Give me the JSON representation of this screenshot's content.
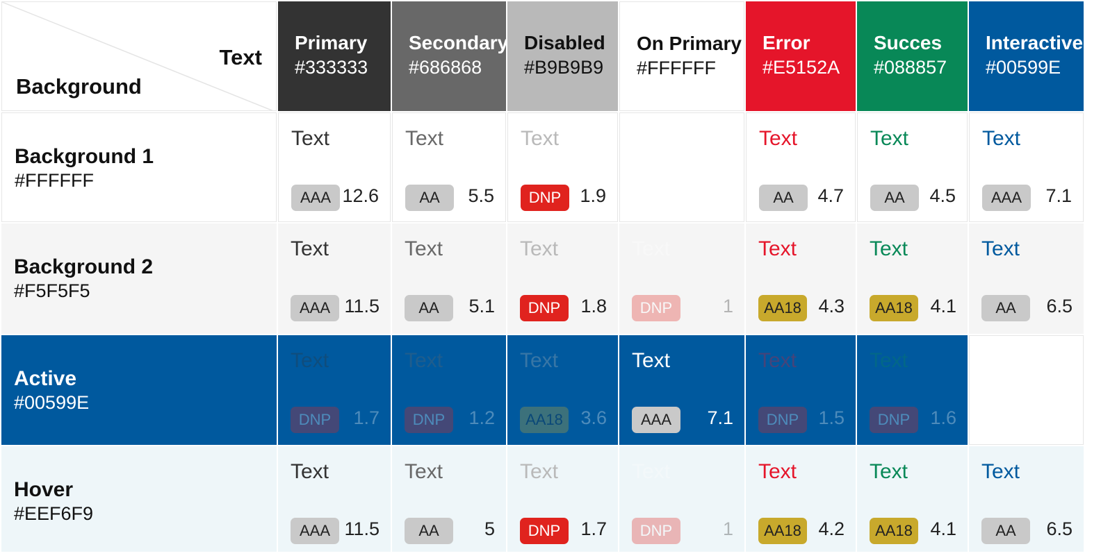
{
  "corner": {
    "text_label": "Text",
    "background_label": "Background"
  },
  "columns": [
    {
      "name": "Primary",
      "hex": "#333333",
      "color": "#333333",
      "header_text_color": "#FFFFFF"
    },
    {
      "name": "Secondary",
      "hex": "#686868",
      "color": "#686868",
      "header_text_color": "#FFFFFF"
    },
    {
      "name": "Disabled",
      "hex": "#B9B9B9",
      "color": "#B9B9B9",
      "header_text_color": "#111111"
    },
    {
      "name": "On Primary",
      "hex": "#FFFFFF",
      "color": "#FFFFFF",
      "header_text_color": "#111111"
    },
    {
      "name": "Error",
      "hex": "#E5152A",
      "color": "#E5152A",
      "header_text_color": "#FFFFFF"
    },
    {
      "name": "Succes",
      "hex": "#088857",
      "color": "#088857",
      "header_text_color": "#FFFFFF"
    },
    {
      "name": "Interactive",
      "hex": "#00599E",
      "color": "#00599E",
      "header_text_color": "#FFFFFF"
    }
  ],
  "rows": [
    {
      "name": "Background 1",
      "hex": "#FFFFFF",
      "color": "#FFFFFF",
      "header_text_color": "#111111",
      "cells": [
        {
          "sample": "Text",
          "badge": "AAA",
          "ratio": "12.6"
        },
        {
          "sample": "Text",
          "badge": "AA",
          "ratio": "5.5"
        },
        {
          "sample": "Text",
          "badge": "DNP",
          "ratio": "1.9"
        },
        {
          "empty": true
        },
        {
          "sample": "Text",
          "badge": "AA",
          "ratio": "4.7"
        },
        {
          "sample": "Text",
          "badge": "AA",
          "ratio": "4.5"
        },
        {
          "sample": "Text",
          "badge": "AAA",
          "ratio": "7.1"
        }
      ]
    },
    {
      "name": "Background 2",
      "hex": "#F5F5F5",
      "color": "#F5F5F5",
      "header_text_color": "#111111",
      "cells": [
        {
          "sample": "Text",
          "badge": "AAA",
          "ratio": "11.5"
        },
        {
          "sample": "Text",
          "badge": "AA",
          "ratio": "5.1"
        },
        {
          "sample": "Text",
          "badge": "DNP",
          "ratio": "1.8"
        },
        {
          "sample": "Text",
          "badge": "DNP",
          "ratio": "1",
          "faded": true
        },
        {
          "sample": "Text",
          "badge": "AA18",
          "ratio": "4.3"
        },
        {
          "sample": "Text",
          "badge": "AA18",
          "ratio": "4.1"
        },
        {
          "sample": "Text",
          "badge": "AA",
          "ratio": "6.5"
        }
      ]
    },
    {
      "name": "Active",
      "hex": "#00599E",
      "color": "#00599E",
      "header_text_color": "#FFFFFF",
      "cells": [
        {
          "sample": "Text",
          "badge": "DNP",
          "ratio": "1.7",
          "faded": true
        },
        {
          "sample": "Text",
          "badge": "DNP",
          "ratio": "1.2",
          "faded": true
        },
        {
          "sample": "Text",
          "badge": "AA18",
          "ratio": "3.6",
          "faded": true
        },
        {
          "sample": "Text",
          "badge": "AAA",
          "ratio": "7.1"
        },
        {
          "sample": "Text",
          "badge": "DNP",
          "ratio": "1.5",
          "faded": true
        },
        {
          "sample": "Text",
          "badge": "DNP",
          "ratio": "1.6",
          "faded": true
        },
        {
          "empty": true
        }
      ]
    },
    {
      "name": "Hover",
      "hex": "#EEF6F9",
      "color": "#EEF6F9",
      "header_text_color": "#111111",
      "cells": [
        {
          "sample": "Text",
          "badge": "AAA",
          "ratio": "11.5"
        },
        {
          "sample": "Text",
          "badge": "AA",
          "ratio": "5"
        },
        {
          "sample": "Text",
          "badge": "DNP",
          "ratio": "1.7"
        },
        {
          "sample": "Text",
          "badge": "DNP",
          "ratio": "1",
          "faded": true
        },
        {
          "sample": "Text",
          "badge": "AA18",
          "ratio": "4.2"
        },
        {
          "sample": "Text",
          "badge": "AA18",
          "ratio": "4.1"
        },
        {
          "sample": "Text",
          "badge": "AA",
          "ratio": "6.5"
        }
      ]
    }
  ],
  "badge_styles": {
    "AAA": {
      "bg": "#C9C9C9",
      "fg": "#222222"
    },
    "AA": {
      "bg": "#C9C9C9",
      "fg": "#222222"
    },
    "AA18": {
      "bg": "#C8A92C",
      "fg": "#222222"
    },
    "DNP": {
      "bg": "#E0231E",
      "fg": "#FFFFFF"
    }
  },
  "row_ratio_colors": [
    "#222222",
    "#222222",
    "#FFFFFF",
    "#222222"
  ]
}
